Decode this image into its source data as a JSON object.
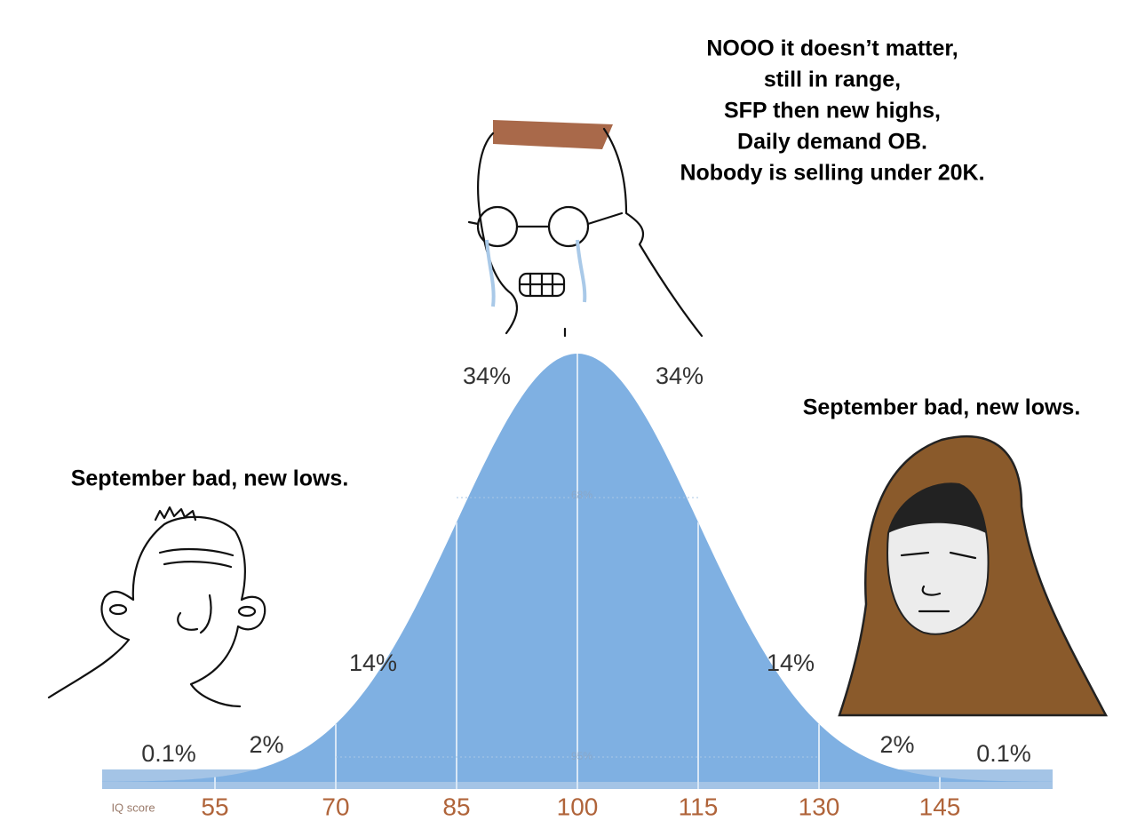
{
  "captions": {
    "top": [
      "NOOO it doesn’t matter,",
      "still in range,",
      "SFP then new highs,",
      "Daily demand OB.",
      "Nobody is selling under 20K."
    ],
    "left": "September bad, new lows.",
    "right": "September bad, new lows."
  },
  "region_labels": [
    "0.1%",
    "2%",
    "14%",
    "34%",
    "34%",
    "14%",
    "2%",
    "0.1%"
  ],
  "inner_labels": [
    "68%",
    "95%"
  ],
  "axis": {
    "title": "IQ score",
    "ticks": [
      "55",
      "70",
      "85",
      "100",
      "115",
      "130",
      "145"
    ]
  }
}
